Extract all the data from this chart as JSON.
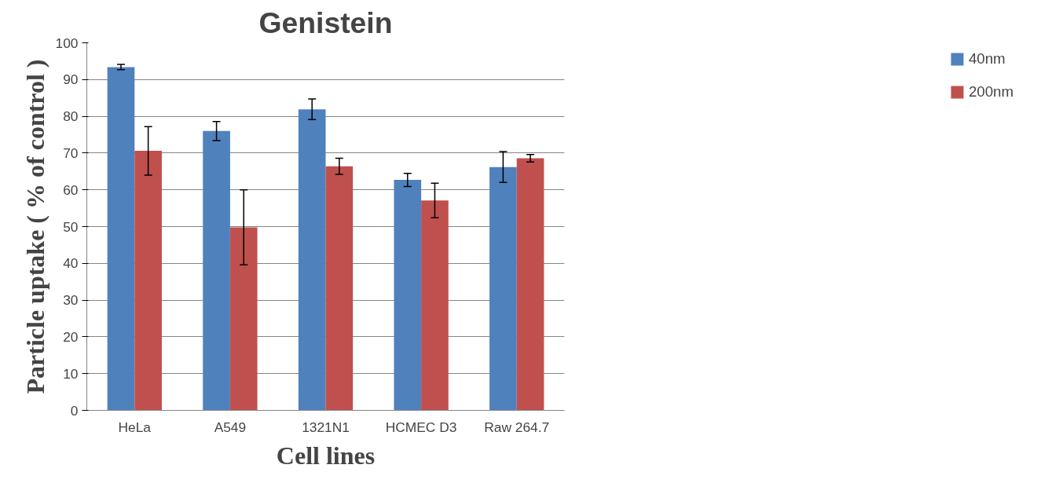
{
  "chart_data": {
    "type": "bar",
    "title": "Genistein",
    "xlabel": "Cell lines",
    "ylabel": "Particle uptake ( % of control )",
    "categories": [
      "HeLa",
      "A549",
      "1321N1",
      "HCMEC D3",
      "Raw 264.7"
    ],
    "series": [
      {
        "name": "40nm",
        "color": "#4f81bd",
        "values": [
          93.4,
          76.0,
          81.9,
          62.7,
          66.2
        ],
        "errors": [
          0.7,
          2.6,
          2.8,
          1.8,
          4.2
        ]
      },
      {
        "name": "200nm",
        "color": "#c0504d",
        "values": [
          70.6,
          49.8,
          66.4,
          57.1,
          68.6
        ],
        "errors": [
          6.6,
          10.2,
          2.2,
          4.7,
          1.0
        ]
      }
    ],
    "ylim": [
      0,
      100
    ],
    "yticks": [
      0,
      10,
      20,
      30,
      40,
      50,
      60,
      70,
      80,
      90,
      100
    ],
    "grid": "y",
    "legend": "right"
  }
}
